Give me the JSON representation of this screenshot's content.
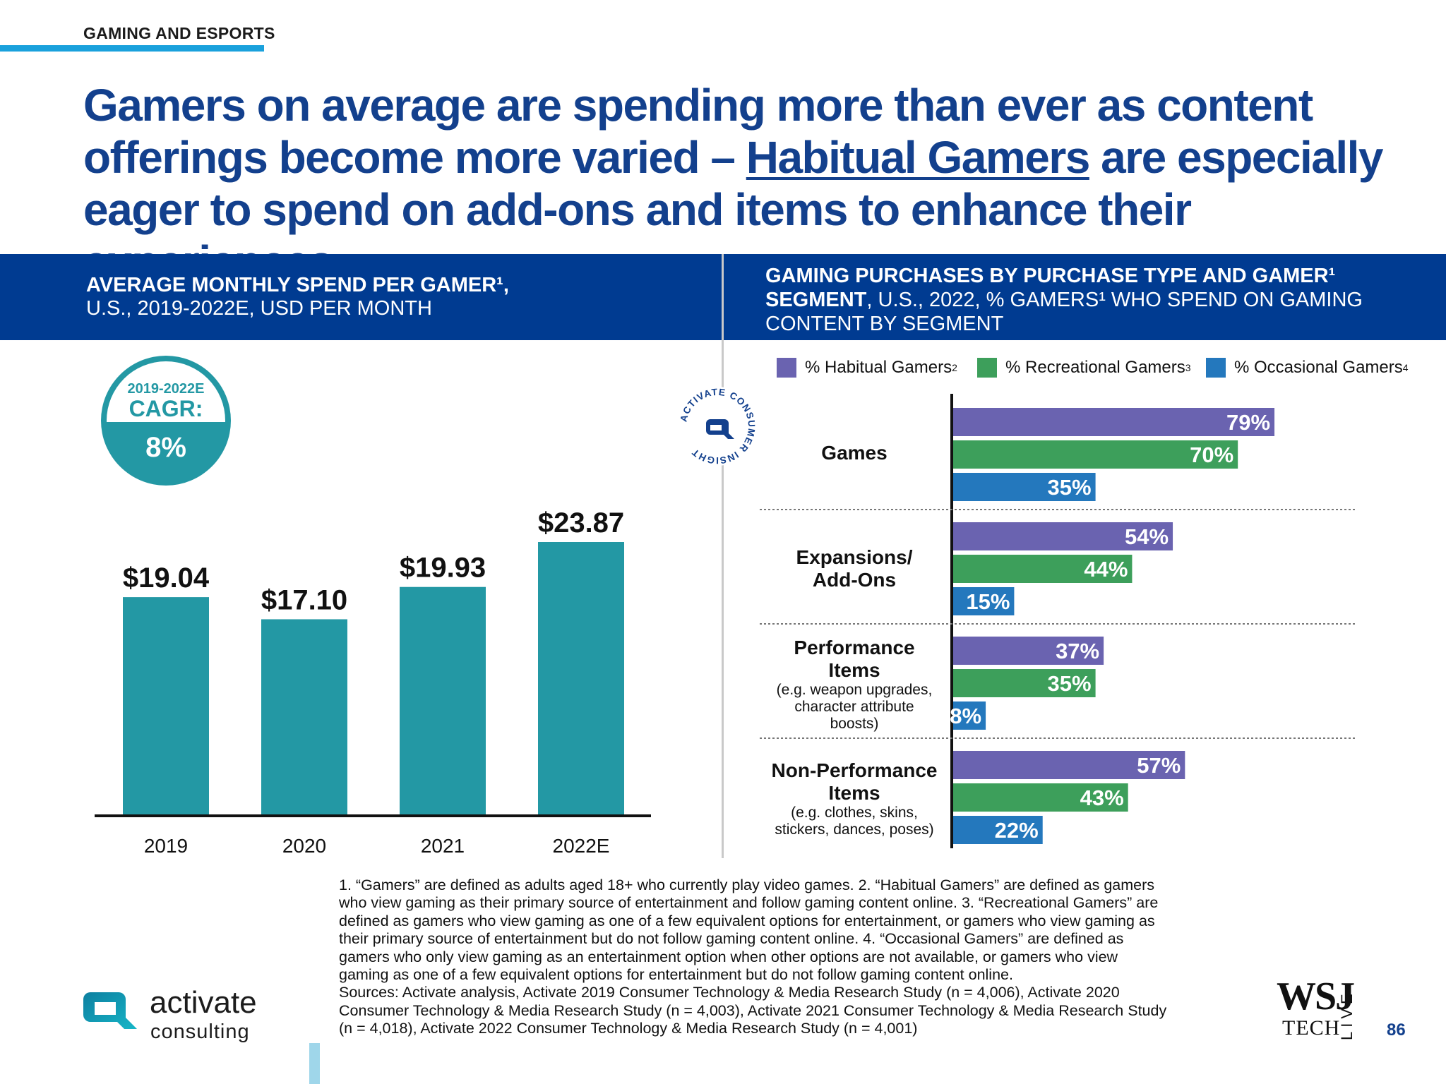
{
  "header": {
    "section": "GAMING AND ESPORTS",
    "headline_part1": "Gamers on average are spending more than ever as content offerings become more varied – ",
    "headline_link": "Habitual Gamers",
    "headline_part2": " are especially eager to spend on add-ons and items to enhance their experiences"
  },
  "left_panel": {
    "title_bold": "AVERAGE MONTHLY SPEND PER GAMER¹,",
    "title_rest": "U.S., 2019-2022E, USD PER MONTH",
    "cagr": {
      "years": "2019-2022E",
      "label": "CAGR:",
      "value": "8%"
    }
  },
  "right_panel": {
    "title_bold1": "GAMING PURCHASES BY PURCHASE TYPE AND GAMER¹",
    "title_bold2": "SEGMENT",
    "title_rest1": ", U.S., 2022, % GAMERS¹ WHO SPEND ON GAMING",
    "title_rest2": "CONTENT BY SEGMENT",
    "badge_text": "ACTIVATE CONSUMER INSIGHT"
  },
  "chart_data": [
    {
      "type": "bar",
      "title": "AVERAGE MONTHLY SPEND PER GAMER, U.S., 2019-2022E, USD PER MONTH",
      "categories": [
        "2019",
        "2020",
        "2021",
        "2022E"
      ],
      "values": [
        19.04,
        17.1,
        19.93,
        23.87
      ],
      "value_labels": [
        "$19.04",
        "$17.10",
        "$19.93",
        "$23.87"
      ],
      "ylim": [
        0,
        30
      ],
      "color": "#2398a4"
    },
    {
      "type": "bar",
      "orientation": "horizontal",
      "title": "GAMING PURCHASES BY PURCHASE TYPE AND GAMER SEGMENT, U.S., 2022",
      "categories": [
        {
          "title_lines": [
            "Games"
          ],
          "sub_lines": []
        },
        {
          "title_lines": [
            "Expansions/",
            "Add-Ons"
          ],
          "sub_lines": []
        },
        {
          "title_lines": [
            "Performance",
            "Items"
          ],
          "sub_lines": [
            "(e.g. weapon upgrades,",
            "character attribute",
            "boosts)"
          ]
        },
        {
          "title_lines": [
            "Non-Performance",
            "Items"
          ],
          "sub_lines": [
            "(e.g. clothes, skins,",
            "stickers, dances, poses)"
          ]
        }
      ],
      "series": [
        {
          "name": "% Habitual Gamers",
          "sup": "2",
          "color": "#6a63b0",
          "values": [
            79,
            54,
            37,
            57
          ]
        },
        {
          "name": "% Recreational Gamers",
          "sup": "3",
          "color": "#3d9f5b",
          "values": [
            70,
            44,
            35,
            43
          ]
        },
        {
          "name": "% Occasional Gamers",
          "sup": "4",
          "color": "#2478bd",
          "values": [
            35,
            15,
            8,
            22
          ]
        }
      ],
      "xlim": [
        0,
        100
      ],
      "unit": "%"
    }
  ],
  "footnote": {
    "lines": [
      "1. “Gamers” are defined as adults aged 18+ who currently play video games.  2. “Habitual Gamers” are defined as gamers",
      "who view gaming as their primary source of entertainment and follow gaming content online.  3. “Recreational Gamers” are",
      "defined as gamers who view gaming as one of a few equivalent options for entertainment, or gamers who view gaming as",
      "their primary source of entertainment but do not follow gaming content online.  4. “Occasional Gamers” are defined as",
      "gamers who only view gaming as an entertainment option when other options are not available, or gamers who view",
      "gaming as one of a few equivalent options for entertainment but do not follow gaming content online.",
      "Sources: Activate analysis, Activate 2019 Consumer Technology & Media Research Study (n = 4,006), Activate 2020",
      "Consumer Technology & Media Research Study (n = 4,003), Activate 2021 Consumer Technology & Media Research Study",
      "(n = 4,018), Activate 2022 Consumer Technology & Media Research Study (n = 4,001)"
    ]
  },
  "footer": {
    "logo_word": "activate",
    "logo_sub": "consulting",
    "wsj": "WSJ",
    "wsj_tech": "TECH",
    "wsj_live": "LIVE",
    "page": "86"
  }
}
